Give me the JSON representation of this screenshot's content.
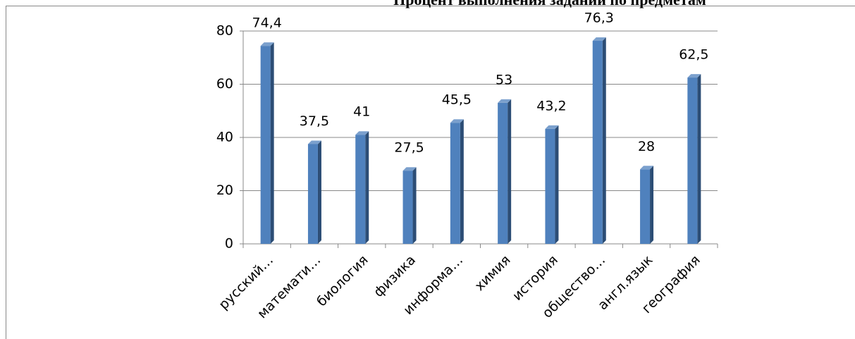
{
  "chart_data": {
    "type": "bar",
    "title": "Процент выполнения заданий  по предметам",
    "categories": [
      "русский…",
      "математи…",
      "биология",
      "физика",
      "информа…",
      "химия",
      "история",
      "общество…",
      "англ.язык",
      "география"
    ],
    "values": [
      74.4,
      37.5,
      41,
      27.5,
      45.5,
      53,
      43.2,
      76.3,
      28,
      62.5
    ],
    "value_labels": [
      "74,4",
      "37,5",
      "41",
      "27,5",
      "45,5",
      "53",
      "43,2",
      "76,3",
      "28",
      "62,5"
    ],
    "color": "#4f81bd",
    "ylim": [
      0,
      80
    ],
    "yticks": [
      0,
      20,
      40,
      60,
      80
    ],
    "grid": true
  }
}
